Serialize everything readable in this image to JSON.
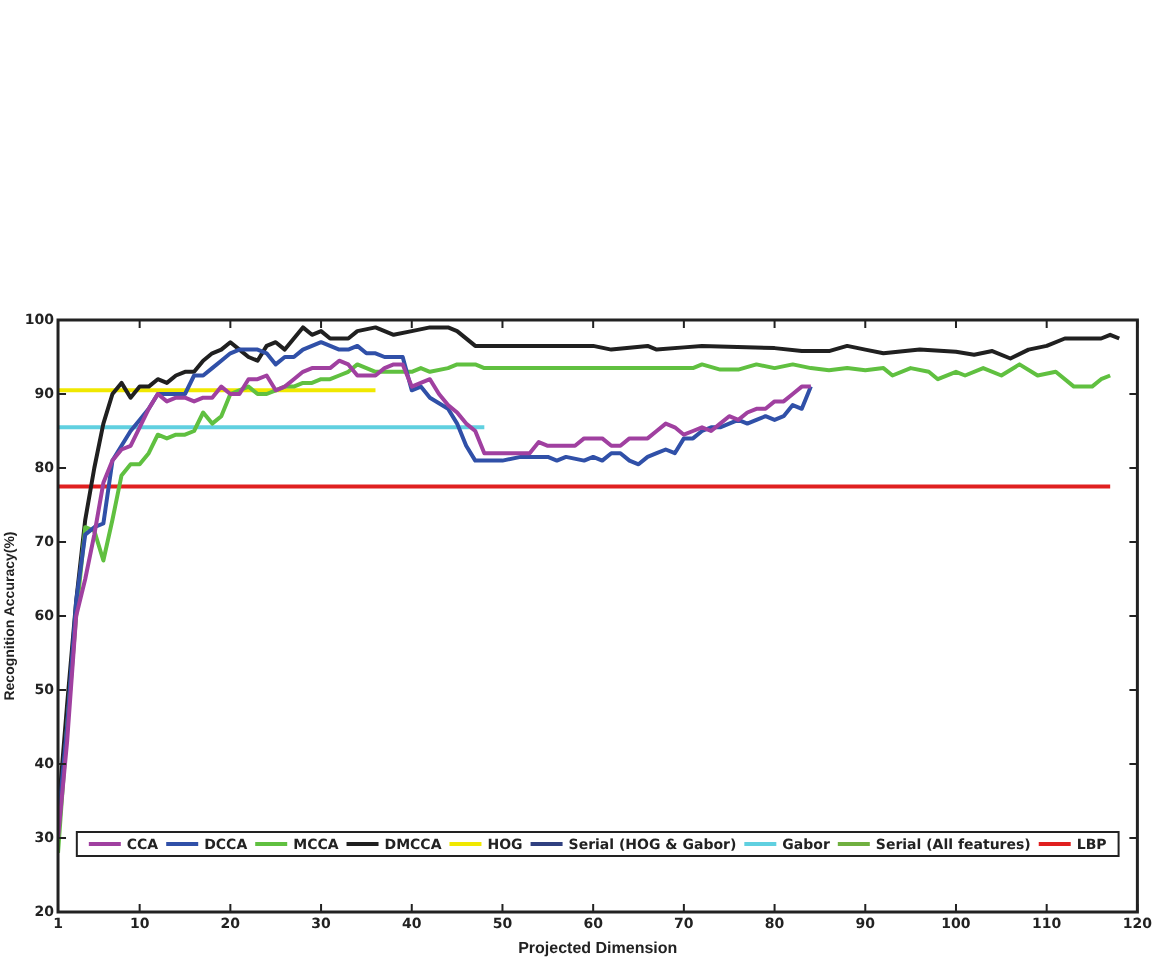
{
  "chart_data": {
    "type": "line",
    "xlabel": "Projected Dimension",
    "ylabel": "Recognition Accuracy(%)",
    "xlim": [
      1,
      120
    ],
    "xticks": [
      1,
      10,
      20,
      30,
      40,
      50,
      60,
      70,
      80,
      90,
      100,
      110,
      120
    ],
    "ylim": [
      20,
      100
    ],
    "yticks": [
      20,
      30,
      40,
      50,
      60,
      70,
      80,
      90,
      100
    ],
    "grid": false,
    "legend": "bottom",
    "marker": "none",
    "line_style": "solid",
    "series": [
      {
        "name": "CCA",
        "color": "#a040a0",
        "x": [
          1,
          2,
          3,
          4,
          5,
          6,
          7,
          8,
          9,
          10,
          11,
          12,
          13,
          14,
          15,
          16,
          17,
          18,
          19,
          20,
          21,
          22,
          23,
          24,
          25,
          26,
          27,
          28,
          29,
          30,
          31,
          32,
          33,
          34,
          35,
          36,
          37,
          38,
          39,
          40,
          41,
          42,
          43,
          44,
          45,
          46,
          47,
          48,
          50,
          53,
          54,
          55,
          58,
          59,
          61,
          62,
          63,
          64,
          66,
          67,
          68,
          69,
          70,
          71,
          72,
          73,
          74,
          75,
          76,
          77,
          78,
          79,
          80,
          81,
          82,
          83,
          84
        ],
        "values": [
          30,
          43,
          60,
          65,
          71,
          78,
          81,
          82.5,
          83,
          85.5,
          88,
          90,
          89,
          89.5,
          89.5,
          89,
          89.5,
          89.5,
          91,
          90,
          90,
          92,
          92,
          92.5,
          90.5,
          91,
          92,
          93,
          93.5,
          93.5,
          93.5,
          94.5,
          94,
          92.5,
          92.5,
          92.5,
          93.5,
          94,
          94,
          91,
          91.5,
          92,
          90,
          88.5,
          87.5,
          86,
          85,
          82,
          82,
          82,
          83.5,
          83,
          83,
          84,
          84,
          83,
          83,
          84,
          84,
          85,
          86,
          85.5,
          84.5,
          85,
          85.5,
          85,
          86,
          87,
          86.5,
          87.5,
          88,
          88,
          89,
          89,
          90,
          91,
          91
        ]
      },
      {
        "name": "DCCA",
        "color": "#3050a8",
        "x": [
          1,
          2,
          3,
          4,
          5,
          6,
          7,
          8,
          9,
          10,
          11,
          12,
          13,
          14,
          15,
          16,
          17,
          18,
          19,
          20,
          21,
          22,
          23,
          24,
          25,
          26,
          27,
          28,
          29,
          30,
          31,
          32,
          33,
          34,
          35,
          36,
          37,
          39,
          40,
          41,
          42,
          44,
          45,
          46,
          47,
          50,
          52,
          55,
          56,
          57,
          59,
          60,
          61,
          62,
          63,
          64,
          65,
          66,
          67,
          68,
          69,
          70,
          71,
          72,
          73,
          74,
          75,
          76,
          77,
          78,
          79,
          80,
          81,
          82,
          83,
          84
        ],
        "values": [
          32,
          45,
          62,
          71,
          72,
          72.5,
          81,
          83,
          85,
          86.5,
          88,
          90,
          90,
          90,
          90,
          92.5,
          92.5,
          93.5,
          94.5,
          95.5,
          96,
          96,
          96,
          95.5,
          94,
          95,
          95,
          96,
          96.5,
          97,
          96.5,
          96,
          96,
          96.5,
          95.5,
          95.5,
          95,
          95,
          90.5,
          91,
          89.5,
          88,
          86,
          83,
          81,
          81,
          81.5,
          81.5,
          81,
          81.5,
          81,
          81.5,
          81,
          82,
          82,
          81,
          80.5,
          81.5,
          82,
          82.5,
          82,
          84,
          84,
          85,
          85.5,
          85.5,
          86,
          86.5,
          86,
          86.5,
          87,
          86.5,
          87,
          88.5,
          88,
          91
        ]
      },
      {
        "name": "MCCA",
        "color": "#60c040",
        "x": [
          1,
          2,
          3,
          4,
          5,
          6,
          7,
          8,
          9,
          10,
          11,
          12,
          13,
          14,
          15,
          16,
          17,
          18,
          19,
          20,
          21,
          22,
          23,
          24,
          25,
          26,
          27,
          28,
          29,
          30,
          31,
          32,
          33,
          34,
          35,
          36,
          38,
          40,
          41,
          42,
          44,
          45,
          47,
          48,
          60,
          71,
          72,
          74,
          76,
          78,
          80,
          82,
          84,
          86,
          88,
          90,
          92,
          93,
          95,
          97,
          98,
          100,
          101,
          103,
          105,
          107,
          109,
          111,
          113,
          115,
          116,
          117
        ],
        "values": [
          28,
          45,
          60,
          72,
          71.5,
          67.5,
          73,
          79,
          80.5,
          80.5,
          82,
          84.5,
          84,
          84.5,
          84.5,
          85,
          87.5,
          86,
          87,
          90,
          90.5,
          91,
          90,
          90,
          90.5,
          91,
          91,
          91.5,
          91.5,
          92,
          92,
          92.5,
          93,
          94,
          93.5,
          93,
          93,
          93,
          93.5,
          93,
          93.5,
          94,
          94,
          93.5,
          93.5,
          93.5,
          94,
          93.3,
          93.3,
          94,
          93.5,
          94,
          93.5,
          93.2,
          93.5,
          93.2,
          93.5,
          92.5,
          93.5,
          93,
          92,
          93,
          92.5,
          93.5,
          92.5,
          94,
          92.5,
          93,
          91,
          91,
          92,
          92.5
        ]
      },
      {
        "name": "DMCCA",
        "color": "#202020",
        "x": [
          1,
          2,
          3,
          4,
          5,
          6,
          7,
          8,
          9,
          10,
          11,
          12,
          13,
          14,
          15,
          16,
          17,
          18,
          19,
          20,
          21,
          22,
          23,
          24,
          25,
          26,
          27,
          28,
          29,
          30,
          31,
          33,
          34,
          36,
          38,
          40,
          42,
          44,
          45,
          47,
          60,
          62,
          66,
          67,
          70,
          72,
          80,
          83,
          86,
          88,
          90,
          92,
          96,
          100,
          102,
          104,
          106,
          108,
          110,
          112,
          116,
          117,
          118
        ],
        "values": [
          33,
          48,
          62,
          73,
          80,
          86,
          90,
          91.5,
          89.5,
          91,
          91,
          92,
          91.5,
          92.5,
          93,
          93,
          94.5,
          95.5,
          96,
          97,
          96,
          95,
          94.5,
          96.5,
          97,
          96,
          97.5,
          99,
          98,
          98.5,
          97.5,
          97.5,
          98.5,
          99,
          98,
          98.5,
          99,
          99,
          98.5,
          96.5,
          96.5,
          96,
          96.5,
          96,
          96.3,
          96.5,
          96.2,
          95.8,
          95.8,
          96.5,
          96,
          95.5,
          96,
          95.7,
          95.3,
          95.8,
          94.8,
          96,
          96.5,
          97.5,
          97.5,
          98,
          97.5
        ]
      },
      {
        "name": "HOG",
        "color": "#f0e800",
        "x": [
          1,
          36
        ],
        "values": [
          90.5,
          90.5
        ]
      },
      {
        "name": "Serial (HOG & Gabor)",
        "color": "#304080"
      },
      {
        "name": "Gabor",
        "color": "#60d0e0",
        "x": [
          1,
          48
        ],
        "values": [
          85.5,
          85.5
        ]
      },
      {
        "name": "Serial (All features)",
        "color": "#70b040"
      },
      {
        "name": "LBP",
        "color": "#e02020",
        "x": [
          1,
          117
        ],
        "values": [
          77.5,
          77.5
        ]
      }
    ]
  }
}
